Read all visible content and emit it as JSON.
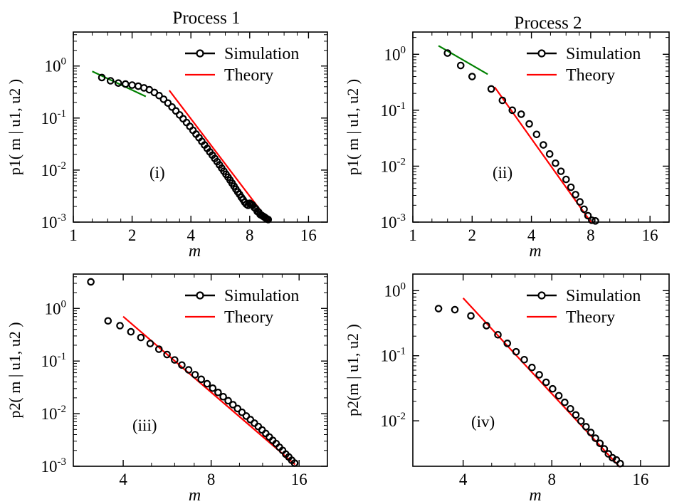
{
  "colors": {
    "simulation": "#000000",
    "theory": "#ff0000",
    "small_m_fit": "#008000"
  },
  "titles": {
    "left": "Process 1",
    "right": "Process 2"
  },
  "legend": {
    "simulation": "Simulation",
    "theory": "Theory"
  },
  "chart_data": [
    {
      "type": "scatter",
      "panel_label": "(i)",
      "title": "Process 1",
      "xlabel": "m",
      "ylabel": "p1( m | u1, u2 )",
      "xscale": "log2",
      "yscale": "log10",
      "xlim": [
        1,
        20
      ],
      "ylim": [
        0.001,
        4.5
      ],
      "xticks": [
        "1",
        "2",
        "4",
        "8",
        "16"
      ],
      "yticks": [
        "10^0",
        "10^-1",
        "10^-2",
        "10^-3"
      ],
      "legend_position": "top-right",
      "series": [
        {
          "name": "Simulation",
          "style": "markers",
          "x": [
            1.4,
            1.55,
            1.7,
            1.85,
            2.0,
            2.15,
            2.3,
            2.45,
            2.6,
            2.75,
            2.9,
            3.05,
            3.2,
            3.35,
            3.5,
            3.65,
            3.8,
            3.95,
            4.1,
            4.25,
            4.4,
            4.55,
            4.7,
            4.85,
            5.0,
            5.15,
            5.3,
            5.45,
            5.6,
            5.75,
            5.9,
            6.05,
            6.2,
            6.35,
            6.5,
            6.65,
            6.8,
            6.95,
            7.1,
            7.25,
            7.4,
            7.55,
            7.7,
            7.85,
            8.0,
            8.15,
            8.3,
            8.45,
            8.6,
            8.75,
            8.9,
            9.05,
            9.2,
            9.35,
            9.5,
            9.65,
            9.8,
            9.95
          ],
          "y": [
            0.6,
            0.52,
            0.47,
            0.45,
            0.43,
            0.41,
            0.38,
            0.35,
            0.31,
            0.27,
            0.23,
            0.194,
            0.163,
            0.137,
            0.115,
            0.097,
            0.082,
            0.069,
            0.058,
            0.049,
            0.042,
            0.0355,
            0.0303,
            0.026,
            0.0223,
            0.0193,
            0.0167,
            0.0145,
            0.0126,
            0.0109,
            0.0095,
            0.0083,
            0.0073,
            0.0064,
            0.0056,
            0.0049,
            0.0043,
            0.0038,
            0.0034,
            0.003,
            0.0027,
            0.0024,
            0.0022,
            0.0021,
            0.0023,
            0.0022,
            0.0021,
            0.0019,
            0.0018,
            0.0016,
            0.00155,
            0.0014,
            0.00135,
            0.0013,
            0.00125,
            0.0012,
            0.00115,
            0.00112
          ]
        },
        {
          "name": "Theory",
          "style": "line",
          "x": [
            3.1,
            10.0
          ],
          "y": [
            0.34,
            0.00105
          ]
        },
        {
          "style": "line",
          "color": "green",
          "x": [
            1.25,
            2.35
          ],
          "y": [
            0.79,
            0.26
          ]
        }
      ]
    },
    {
      "type": "scatter",
      "panel_label": "(ii)",
      "title": "Process 2",
      "xlabel": "m",
      "ylabel": "p1( m | u1, u2 )",
      "xscale": "log2",
      "yscale": "log10",
      "xlim": [
        1,
        20
      ],
      "ylim": [
        0.001,
        2.5
      ],
      "xticks": [
        "1",
        "2",
        "4",
        "8",
        "16"
      ],
      "yticks": [
        "10^0",
        "10^-1",
        "10^-2",
        "10^-3"
      ],
      "legend_position": "top-right",
      "series": [
        {
          "name": "Simulation",
          "style": "markers",
          "x": [
            1.5,
            1.75,
            2.0,
            2.5,
            2.85,
            3.2,
            3.55,
            3.9,
            4.25,
            4.6,
            4.95,
            5.3,
            5.65,
            6.0,
            6.35,
            6.7,
            7.05,
            7.4,
            7.75,
            8.1,
            8.45
          ],
          "y": [
            1.05,
            0.63,
            0.4,
            0.24,
            0.15,
            0.1,
            0.085,
            0.057,
            0.037,
            0.024,
            0.0165,
            0.0113,
            0.0081,
            0.0058,
            0.0042,
            0.0031,
            0.0023,
            0.0017,
            0.0013,
            0.00108,
            0.00105
          ]
        },
        {
          "name": "Theory",
          "style": "line",
          "x": [
            2.6,
            8.1
          ],
          "y": [
            0.26,
            0.00095
          ]
        },
        {
          "style": "line",
          "color": "green",
          "x": [
            1.35,
            2.4
          ],
          "y": [
            1.42,
            0.44
          ]
        }
      ]
    },
    {
      "type": "scatter",
      "panel_label": "(iii)",
      "xlabel": "m",
      "ylabel": "p2( m | u1, u2 )",
      "xscale": "log2",
      "yscale": "log10",
      "xlim": [
        2.7,
        20
      ],
      "ylim": [
        0.001,
        4.5
      ],
      "xticks": [
        "4",
        "8",
        "16"
      ],
      "yticks": [
        "10^0",
        "10^-1",
        "10^-2",
        "10^-3"
      ],
      "legend_position": "top-right",
      "series": [
        {
          "name": "Simulation",
          "style": "markers",
          "x": [
            3.1,
            3.55,
            3.9,
            4.25,
            4.6,
            4.95,
            5.3,
            5.65,
            6.0,
            6.35,
            6.7,
            7.05,
            7.4,
            7.75,
            8.1,
            8.45,
            8.8,
            9.15,
            9.5,
            9.85,
            10.2,
            10.55,
            10.9,
            11.25,
            11.6,
            11.95,
            12.3,
            12.65,
            13.0,
            13.35,
            13.7,
            14.05,
            14.4,
            14.75,
            15.1,
            15.45
          ],
          "y": [
            3.2,
            0.58,
            0.47,
            0.36,
            0.28,
            0.215,
            0.168,
            0.133,
            0.105,
            0.084,
            0.068,
            0.055,
            0.045,
            0.037,
            0.0305,
            0.0253,
            0.021,
            0.0176,
            0.0148,
            0.0125,
            0.0106,
            0.009,
            0.0077,
            0.0066,
            0.0057,
            0.0049,
            0.0042,
            0.0036,
            0.0031,
            0.0027,
            0.0023,
            0.002,
            0.0017,
            0.0015,
            0.0013,
            0.00115
          ]
        },
        {
          "name": "Theory",
          "style": "line",
          "x": [
            4.0,
            15.5
          ],
          "y": [
            0.7,
            0.00108
          ]
        }
      ]
    },
    {
      "type": "scatter",
      "panel_label": "(iv)",
      "xlabel": "m",
      "ylabel": "p2(m | u1, u2 )",
      "xscale": "log2",
      "yscale": "log10",
      "xlim": [
        2.7,
        20
      ],
      "ylim": [
        0.002,
        1.8
      ],
      "xticks": [
        "4",
        "8",
        "16"
      ],
      "yticks": [
        "10^0",
        "10^-1",
        "10^-2"
      ],
      "legend_position": "top-right",
      "series": [
        {
          "name": "Simulation",
          "style": "markers",
          "x": [
            3.3,
            3.75,
            4.25,
            4.8,
            5.25,
            5.65,
            6.05,
            6.45,
            6.85,
            7.25,
            7.65,
            8.05,
            8.45,
            8.85,
            9.25,
            9.65,
            10.05,
            10.45,
            10.85,
            11.25,
            11.65,
            12.05,
            12.45,
            12.85,
            13.25,
            13.65
          ],
          "y": [
            0.53,
            0.51,
            0.41,
            0.29,
            0.21,
            0.155,
            0.115,
            0.087,
            0.066,
            0.051,
            0.039,
            0.031,
            0.0243,
            0.0192,
            0.0153,
            0.0123,
            0.0099,
            0.0081,
            0.0066,
            0.0054,
            0.0045,
            0.0037,
            0.0031,
            0.0027,
            0.0025,
            0.0022
          ]
        },
        {
          "name": "Theory",
          "style": "line",
          "x": [
            4.0,
            13.6
          ],
          "y": [
            0.77,
            0.00195
          ]
        }
      ]
    }
  ]
}
